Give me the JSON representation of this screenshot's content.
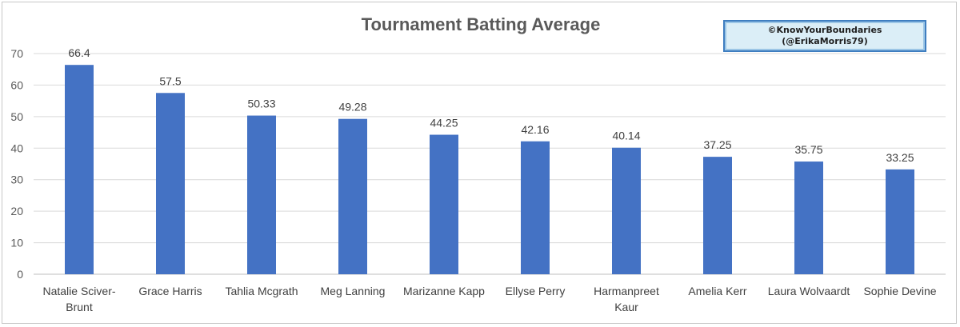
{
  "chart_data": {
    "type": "bar",
    "title": "Tournament Batting Average",
    "watermark": [
      "©KnowYourBoundaries",
      "(@ErikaMorris79)"
    ],
    "categories": [
      [
        "Natalie Sciver-",
        "Brunt"
      ],
      [
        "Grace Harris"
      ],
      [
        "Tahlia Mcgrath"
      ],
      [
        "Meg Lanning"
      ],
      [
        "Marizanne Kapp"
      ],
      [
        "Ellyse Perry"
      ],
      [
        "Harmanpreet",
        "Kaur"
      ],
      [
        "Amelia Kerr"
      ],
      [
        "Laura Wolvaardt"
      ],
      [
        "Sophie Devine"
      ]
    ],
    "values": [
      66.4,
      57.5,
      50.33,
      49.28,
      44.25,
      42.16,
      40.14,
      37.25,
      35.75,
      33.25
    ],
    "value_labels": [
      "66.4",
      "57.5",
      "50.33",
      "49.28",
      "44.25",
      "42.16",
      "40.14",
      "37.25",
      "35.75",
      "33.25"
    ],
    "ylim": [
      0,
      70
    ],
    "yticks": [
      0,
      10,
      20,
      30,
      40,
      50,
      60,
      70
    ],
    "grid": true,
    "bar_color": "#4472c4",
    "xlabel": "",
    "ylabel": ""
  }
}
